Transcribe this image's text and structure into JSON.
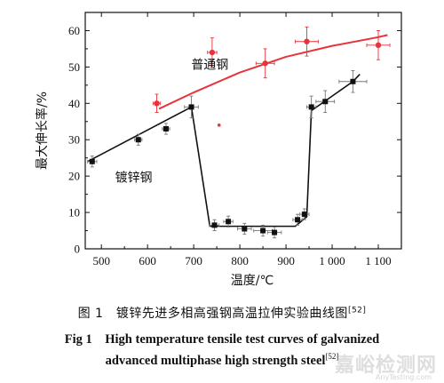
{
  "chart_data": {
    "type": "line",
    "xlabel": "温度/℃",
    "ylabel": "最大伸长率/%",
    "xlim": [
      465,
      1150
    ],
    "ylim": [
      0,
      65
    ],
    "xticks": [
      500,
      600,
      700,
      800,
      900,
      1000,
      1100
    ],
    "xtick_labels": [
      "500",
      "600",
      "700",
      "800",
      "900",
      "1 000",
      "1 100"
    ],
    "yticks": [
      0,
      10,
      20,
      30,
      40,
      50,
      60
    ],
    "ytick_labels": [
      "0",
      "10",
      "20",
      "30",
      "40",
      "50",
      "60"
    ],
    "grid": false,
    "series": [
      {
        "name": "普通钢",
        "color": "#e8333a",
        "marker": "circle",
        "points": [
          {
            "x": 620,
            "y": 40,
            "xerr": 8,
            "yerr": 2.5
          },
          {
            "x": 740,
            "y": 54,
            "xerr": 10,
            "yerr": 4
          },
          {
            "x": 855,
            "y": 51,
            "xerr": 20,
            "yerr": 4
          },
          {
            "x": 945,
            "y": 57,
            "xerr": 25,
            "yerr": 4
          },
          {
            "x": 1100,
            "y": 56,
            "xerr": 25,
            "yerr": 4
          }
        ],
        "outlier": {
          "x": 755,
          "y": 34
        },
        "fit": [
          [
            625,
            38.5
          ],
          [
            700,
            43
          ],
          [
            800,
            48.5
          ],
          [
            900,
            52.8
          ],
          [
            1000,
            55.8
          ],
          [
            1100,
            58.2
          ],
          [
            1120,
            58.8
          ]
        ]
      },
      {
        "name": "镀锌钢",
        "color": "#111111",
        "marker": "square",
        "points": [
          {
            "x": 480,
            "y": 24,
            "xerr": 10,
            "yerr": 1.5
          },
          {
            "x": 580,
            "y": 30,
            "xerr": 8,
            "yerr": 1.5
          },
          {
            "x": 640,
            "y": 33,
            "xerr": 8,
            "yerr": 1.5
          },
          {
            "x": 695,
            "y": 39,
            "xerr": 15,
            "yerr": 3
          },
          {
            "x": 745,
            "y": 6.5,
            "xerr": 10,
            "yerr": 1.5
          },
          {
            "x": 775,
            "y": 7.5,
            "xerr": 10,
            "yerr": 1.5
          },
          {
            "x": 810,
            "y": 5.5,
            "xerr": 15,
            "yerr": 1.5
          },
          {
            "x": 850,
            "y": 5,
            "xerr": 20,
            "yerr": 1.5
          },
          {
            "x": 875,
            "y": 4.5,
            "xerr": 15,
            "yerr": 1.5
          },
          {
            "x": 925,
            "y": 8,
            "xerr": 10,
            "yerr": 1.5
          },
          {
            "x": 940,
            "y": 9.5,
            "xerr": 10,
            "yerr": 1.5
          },
          {
            "x": 955,
            "y": 39,
            "xerr": 10,
            "yerr": 3
          },
          {
            "x": 985,
            "y": 40.5,
            "xerr": 20,
            "yerr": 3
          },
          {
            "x": 1045,
            "y": 46,
            "xerr": 30,
            "yerr": 3
          }
        ],
        "line": [
          [
            470,
            24
          ],
          [
            695,
            39
          ],
          [
            735,
            6.2
          ],
          [
            920,
            6.2
          ],
          [
            945,
            8.8
          ],
          [
            955,
            38
          ],
          [
            1045,
            46
          ],
          [
            1060,
            48
          ]
        ]
      }
    ],
    "annotations": [
      {
        "text": "普通钢",
        "x": 735,
        "y": 49.5
      },
      {
        "text": "镀锌钢",
        "x": 570,
        "y": 18.5
      }
    ]
  },
  "caption": {
    "cn_text": "图 1　镀锌先进多相高强钢高温拉伸实验曲线图",
    "cn_ref": "[52]",
    "en_line1": "Fig 1　High temperature tensile test curves of galvanized",
    "en_line2": "advanced multiphase high strength steel",
    "en_ref": "[52]"
  },
  "watermark": {
    "text": "嘉峪检测网",
    "sub": "AnyTesting.com"
  }
}
